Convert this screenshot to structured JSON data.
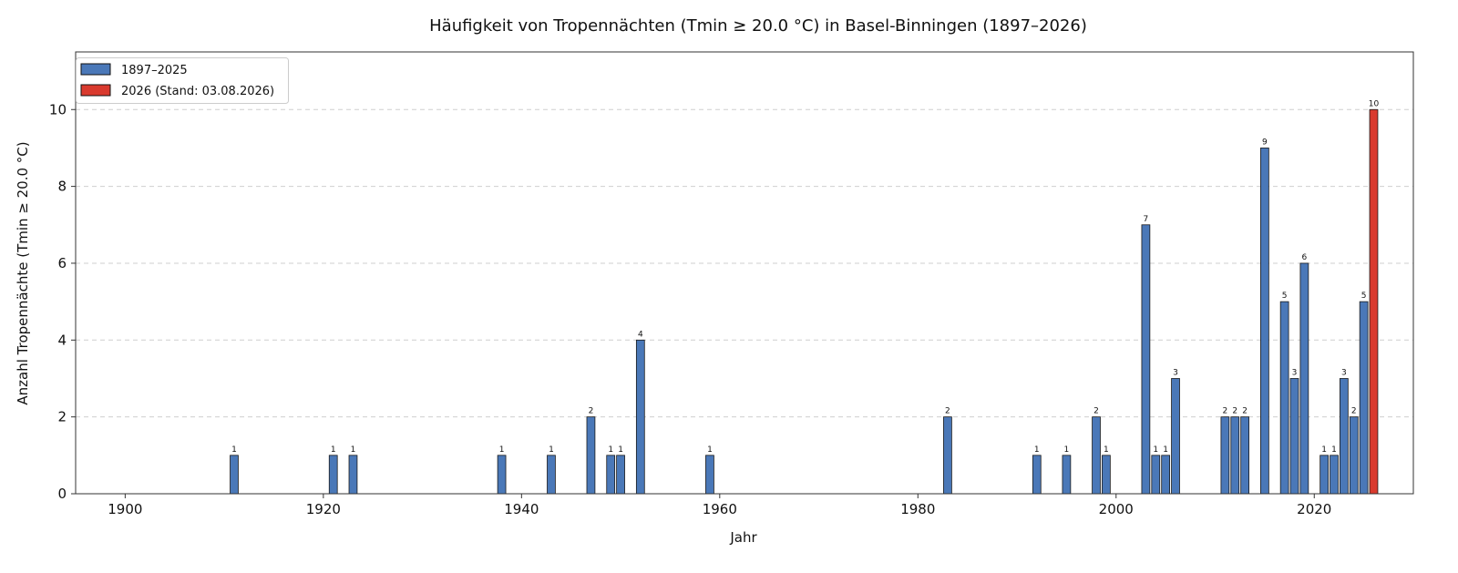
{
  "chart_data": {
    "type": "bar",
    "title": "Häufigkeit von Tropennächten (Tmin ≥ 20.0 °C) in Basel-Binningen (1897–2026)",
    "xlabel": "Jahr",
    "ylabel": "Anzahl Tropennächte (Tmin ≥ 20.0 °C)",
    "xlim": [
      1895,
      2030
    ],
    "ylim": [
      0,
      11.5
    ],
    "xticks": [
      1900,
      1920,
      1940,
      1960,
      1980,
      2000,
      2020
    ],
    "yticks": [
      0,
      2,
      4,
      6,
      8,
      10
    ],
    "grid": "horizontal dashed",
    "legend_position": "top-left",
    "series": [
      {
        "name": "1897–2025",
        "color": "#4a78b8",
        "points": [
          {
            "x": 1911,
            "y": 1
          },
          {
            "x": 1921,
            "y": 1
          },
          {
            "x": 1923,
            "y": 1
          },
          {
            "x": 1938,
            "y": 1
          },
          {
            "x": 1943,
            "y": 1
          },
          {
            "x": 1947,
            "y": 2
          },
          {
            "x": 1949,
            "y": 1
          },
          {
            "x": 1950,
            "y": 1
          },
          {
            "x": 1952,
            "y": 4
          },
          {
            "x": 1959,
            "y": 1
          },
          {
            "x": 1983,
            "y": 2
          },
          {
            "x": 1992,
            "y": 1
          },
          {
            "x": 1995,
            "y": 1
          },
          {
            "x": 1998,
            "y": 2
          },
          {
            "x": 1999,
            "y": 1
          },
          {
            "x": 2003,
            "y": 7
          },
          {
            "x": 2004,
            "y": 1
          },
          {
            "x": 2005,
            "y": 1
          },
          {
            "x": 2006,
            "y": 3
          },
          {
            "x": 2011,
            "y": 2
          },
          {
            "x": 2012,
            "y": 2
          },
          {
            "x": 2013,
            "y": 2
          },
          {
            "x": 2015,
            "y": 9
          },
          {
            "x": 2017,
            "y": 5
          },
          {
            "x": 2018,
            "y": 3
          },
          {
            "x": 2019,
            "y": 6
          },
          {
            "x": 2021,
            "y": 1
          },
          {
            "x": 2022,
            "y": 1
          },
          {
            "x": 2023,
            "y": 3
          },
          {
            "x": 2024,
            "y": 2
          },
          {
            "x": 2025,
            "y": 5
          }
        ]
      },
      {
        "name": "2026 (Stand: 03.08.2026)",
        "color": "#d93a2e",
        "points": [
          {
            "x": 2026,
            "y": 10
          }
        ]
      }
    ]
  }
}
